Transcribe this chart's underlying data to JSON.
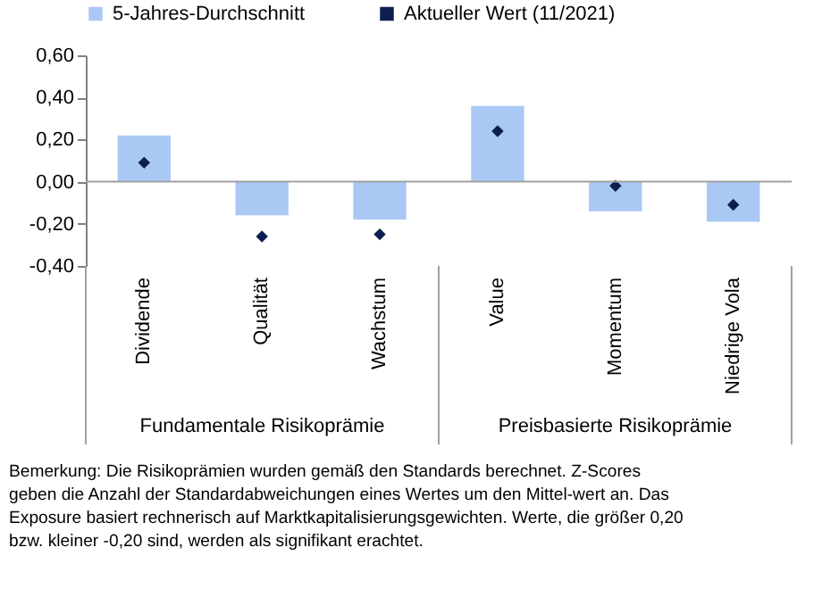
{
  "chart_data": {
    "type": "bar",
    "categories": [
      "Dividende",
      "Qualität",
      "Wachstum",
      "Value",
      "Momentum",
      "Niedrige Vola"
    ],
    "series": [
      {
        "name": "5-Jahres-Durchschnitt",
        "type": "bar",
        "color": "#a9c8f4",
        "values": [
          0.22,
          -0.16,
          -0.18,
          0.36,
          -0.14,
          -0.19
        ]
      },
      {
        "name": "Aktueller Wert (11/2021)",
        "type": "scatter",
        "color": "#0d1f4f",
        "marker": "diamond",
        "values": [
          0.09,
          -0.26,
          -0.25,
          0.24,
          -0.02,
          -0.11
        ]
      }
    ],
    "ylim": [
      -0.4,
      0.6
    ],
    "yticks": [
      {
        "value": -0.4,
        "label": "-0,40"
      },
      {
        "value": -0.2,
        "label": "-0,20"
      },
      {
        "value": 0,
        "label": "0,00"
      },
      {
        "value": 0.2,
        "label": "0,20"
      },
      {
        "value": 0.4,
        "label": "0,40"
      },
      {
        "value": 0.6,
        "label": "0,60"
      }
    ],
    "ref_lines": [
      {
        "axis": "y",
        "value": 0,
        "color": "#a0a0a0"
      }
    ],
    "grid": false,
    "legend": "top",
    "annotations": [
      "Fundamentale Risikoprämie",
      "Preisbasierte Risikoprämie",
      "Bemerkung: Die Risikoprämien wurden gemäß den Standards berechnet. Z-Scores\ngeben die Anzahl der Standardabweichungen eines Wertes um den Mittel-wert an. Das\nExposure basiert rechnerisch auf Marktkapitalisierungsgewichten. Werte, die größer 0,20\nbzw. kleiner -0,20 sind, werden als signifikant erachtet."
    ]
  }
}
